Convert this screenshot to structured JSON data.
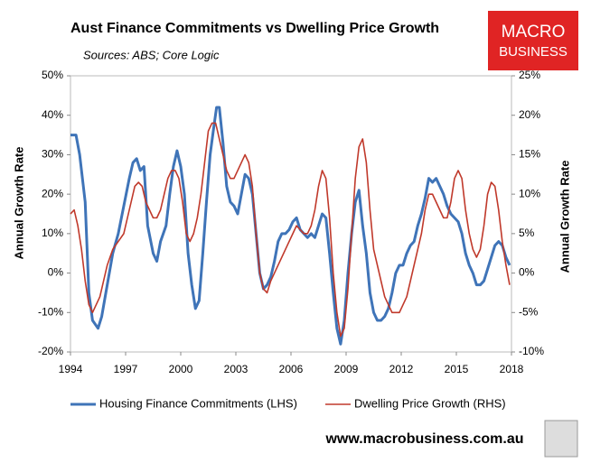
{
  "chart_data": {
    "type": "line",
    "title": "Aust Finance Commitments vs Dwelling Price Growth",
    "subtitle": "Sources: ABS; Core Logic",
    "ylabel": "Annual Growth Rate",
    "y2label": "Annual Growth Rate",
    "xlim": [
      1994,
      2018
    ],
    "xticks": [
      1994,
      1997,
      2000,
      2003,
      2006,
      2009,
      2012,
      2015,
      2018
    ],
    "ylim": [
      -20,
      50
    ],
    "yticks": [
      {
        "value": -20,
        "label": "-20%"
      },
      {
        "value": -10,
        "label": "-10%"
      },
      {
        "value": 0,
        "label": "0%"
      },
      {
        "value": 10,
        "label": "10%"
      },
      {
        "value": 20,
        "label": "20%"
      },
      {
        "value": 30,
        "label": "30%"
      },
      {
        "value": 40,
        "label": "40%"
      },
      {
        "value": 50,
        "label": "50%"
      }
    ],
    "y2lim": [
      -10,
      25
    ],
    "y2ticks": [
      {
        "value": -10,
        "label": "-10%"
      },
      {
        "value": -5,
        "label": "-5%"
      },
      {
        "value": 0,
        "label": "0%"
      },
      {
        "value": 5,
        "label": "5%"
      },
      {
        "value": 10,
        "label": "10%"
      },
      {
        "value": 15,
        "label": "15%"
      },
      {
        "value": 20,
        "label": "20%"
      },
      {
        "value": 25,
        "label": "25%"
      }
    ],
    "legend": "bottom",
    "series": [
      {
        "name": "Housing Finance Commitments (LHS)",
        "color": "#3f74b8",
        "axis": "y",
        "x": [
          1994,
          1994.3,
          1994.5,
          1994.8,
          1995.0,
          1995.2,
          1995.5,
          1995.7,
          1996.0,
          1996.3,
          1996.6,
          1996.9,
          1997.2,
          1997.4,
          1997.6,
          1997.8,
          1998.0,
          1998.2,
          1998.5,
          1998.7,
          1998.9,
          1999.2,
          1999.4,
          1999.6,
          1999.8,
          2000.0,
          2000.2,
          2000.4,
          2000.6,
          2000.8,
          2001.0,
          2001.2,
          2001.4,
          2001.6,
          2001.8,
          2001.95,
          2002.1,
          2002.3,
          2002.5,
          2002.7,
          2002.9,
          2003.1,
          2003.3,
          2003.5,
          2003.7,
          2003.9,
          2004.1,
          2004.3,
          2004.5,
          2004.7,
          2004.9,
          2005.1,
          2005.3,
          2005.5,
          2005.7,
          2005.9,
          2006.1,
          2006.3,
          2006.5,
          2006.7,
          2006.9,
          2007.1,
          2007.3,
          2007.5,
          2007.7,
          2007.9,
          2008.1,
          2008.3,
          2008.5,
          2008.7,
          2008.9,
          2009.1,
          2009.3,
          2009.5,
          2009.7,
          2009.9,
          2010.1,
          2010.3,
          2010.5,
          2010.7,
          2010.9,
          2011.1,
          2011.3,
          2011.5,
          2011.7,
          2011.9,
          2012.1,
          2012.3,
          2012.5,
          2012.7,
          2012.9,
          2013.1,
          2013.3,
          2013.5,
          2013.7,
          2013.9,
          2014.1,
          2014.3,
          2014.5,
          2014.7,
          2014.9,
          2015.1,
          2015.3,
          2015.5,
          2015.7,
          2015.9,
          2016.1,
          2016.3,
          2016.5,
          2016.7,
          2016.9,
          2017.1,
          2017.3,
          2017.5,
          2017.7,
          2017.9
        ],
        "values": [
          35,
          35,
          30,
          18,
          -5,
          -12,
          -14,
          -11,
          -3,
          5,
          10,
          17,
          24,
          28,
          29,
          26,
          27,
          12,
          5,
          3,
          8,
          12,
          20,
          27,
          31,
          27,
          20,
          5,
          -3,
          -9,
          -7,
          5,
          18,
          30,
          37,
          42,
          42,
          33,
          22,
          18,
          17,
          15,
          20,
          25,
          24,
          20,
          10,
          0,
          -4,
          -3,
          -1,
          3,
          8,
          10,
          10,
          11,
          13,
          14,
          11,
          10,
          9,
          10,
          9,
          12,
          15,
          14,
          5,
          -5,
          -14,
          -18,
          -12,
          0,
          10,
          18,
          21,
          12,
          5,
          -5,
          -10,
          -12,
          -12,
          -11,
          -9,
          -5,
          0,
          2,
          2,
          5,
          7,
          8,
          12,
          15,
          19,
          24,
          23,
          24,
          22,
          20,
          17,
          15,
          14,
          13,
          10,
          5,
          2,
          0,
          -3,
          -3,
          -2,
          1,
          4,
          7,
          8,
          7,
          4,
          2
        ]
      },
      {
        "name": "Dwelling Price Growth (RHS)",
        "color": "#c0392b",
        "axis": "y2",
        "x": [
          1994,
          1994.2,
          1994.4,
          1994.6,
          1994.8,
          1995.0,
          1995.2,
          1995.4,
          1995.6,
          1995.8,
          1996.0,
          1996.3,
          1996.6,
          1996.9,
          1997.2,
          1997.5,
          1997.7,
          1997.9,
          1998.1,
          1998.3,
          1998.5,
          1998.7,
          1998.9,
          1999.1,
          1999.3,
          1999.5,
          1999.7,
          1999.9,
          2000.1,
          2000.3,
          2000.5,
          2000.7,
          2000.9,
          2001.1,
          2001.3,
          2001.5,
          2001.7,
          2001.9,
          2002.1,
          2002.3,
          2002.5,
          2002.7,
          2002.9,
          2003.1,
          2003.3,
          2003.5,
          2003.7,
          2003.9,
          2004.1,
          2004.3,
          2004.5,
          2004.7,
          2004.9,
          2005.1,
          2005.3,
          2005.5,
          2005.7,
          2005.9,
          2006.1,
          2006.3,
          2006.5,
          2006.7,
          2006.9,
          2007.1,
          2007.3,
          2007.5,
          2007.7,
          2007.9,
          2008.1,
          2008.3,
          2008.5,
          2008.7,
          2008.9,
          2009.1,
          2009.3,
          2009.5,
          2009.7,
          2009.9,
          2010.1,
          2010.3,
          2010.5,
          2010.7,
          2010.9,
          2011.1,
          2011.3,
          2011.5,
          2011.7,
          2011.9,
          2012.1,
          2012.3,
          2012.5,
          2012.7,
          2012.9,
          2013.1,
          2013.3,
          2013.5,
          2013.7,
          2013.9,
          2014.1,
          2014.3,
          2014.5,
          2014.7,
          2014.9,
          2015.1,
          2015.3,
          2015.5,
          2015.7,
          2015.9,
          2016.1,
          2016.3,
          2016.5,
          2016.7,
          2016.9,
          2017.1,
          2017.3,
          2017.5,
          2017.7,
          2017.9
        ],
        "values": [
          7.5,
          8,
          6,
          3,
          -1,
          -4,
          -5,
          -4,
          -3,
          -1,
          1,
          3,
          4,
          5,
          8,
          11,
          11.5,
          11,
          9,
          8,
          7,
          7,
          8,
          10,
          12,
          13,
          13,
          12,
          9,
          5,
          4,
          5,
          7,
          10,
          14,
          18,
          19,
          19,
          17,
          15,
          13,
          12,
          12,
          13,
          14,
          15,
          14,
          11,
          5,
          0,
          -2,
          -2.5,
          -1,
          0,
          1,
          2,
          3,
          4,
          5,
          6,
          5.5,
          5,
          5,
          6,
          8,
          11,
          13,
          12,
          7,
          0,
          -5,
          -8,
          -7,
          -2,
          5,
          12,
          16,
          17,
          14,
          8,
          3,
          1,
          -1,
          -3,
          -4,
          -5,
          -5,
          -5,
          -4,
          -3,
          -1,
          1,
          3,
          5,
          8,
          10,
          10,
          9,
          8,
          7,
          7,
          9,
          12,
          13,
          12,
          8,
          5,
          3,
          2,
          3,
          6,
          10,
          11.5,
          11,
          8,
          4,
          1,
          -1.5
        ]
      }
    ]
  },
  "logo": [
    "MACRO",
    "BUSINESS"
  ],
  "footer": "www.macrobusiness.com.au"
}
